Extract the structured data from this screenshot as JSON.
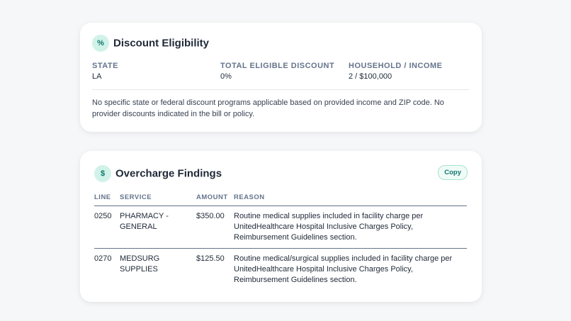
{
  "discount": {
    "icon": "%",
    "title": "Discount Eligibility",
    "fields": [
      {
        "label": "STATE",
        "value": "LA"
      },
      {
        "label": "TOTAL ELIGIBLE DISCOUNT",
        "value": "0%"
      },
      {
        "label": "HOUSEHOLD / INCOME",
        "value": "2 / $100,000"
      }
    ],
    "note": "No specific state or federal discount programs applicable based on provided income and ZIP code. No provider discounts indicated in the bill or policy."
  },
  "findings": {
    "icon": "$",
    "title": "Overcharge Findings",
    "copy": "Copy",
    "columns": [
      "LINE",
      "SERVICE",
      "AMOUNT",
      "REASON"
    ],
    "rows": [
      [
        "0250",
        "PHARMACY - GENERAL",
        "$350.00",
        "Routine medical supplies included in facility charge per UnitedHealthcare Hospital Inclusive Charges Policy, Reimbursement Guidelines section."
      ],
      [
        "0270",
        "MEDSURG SUPPLIES",
        "$125.50",
        "Routine medical/surgical supplies included in facility charge per UnitedHealthcare Hospital Inclusive Charges Policy, Reimbursement Guidelines section."
      ]
    ]
  }
}
